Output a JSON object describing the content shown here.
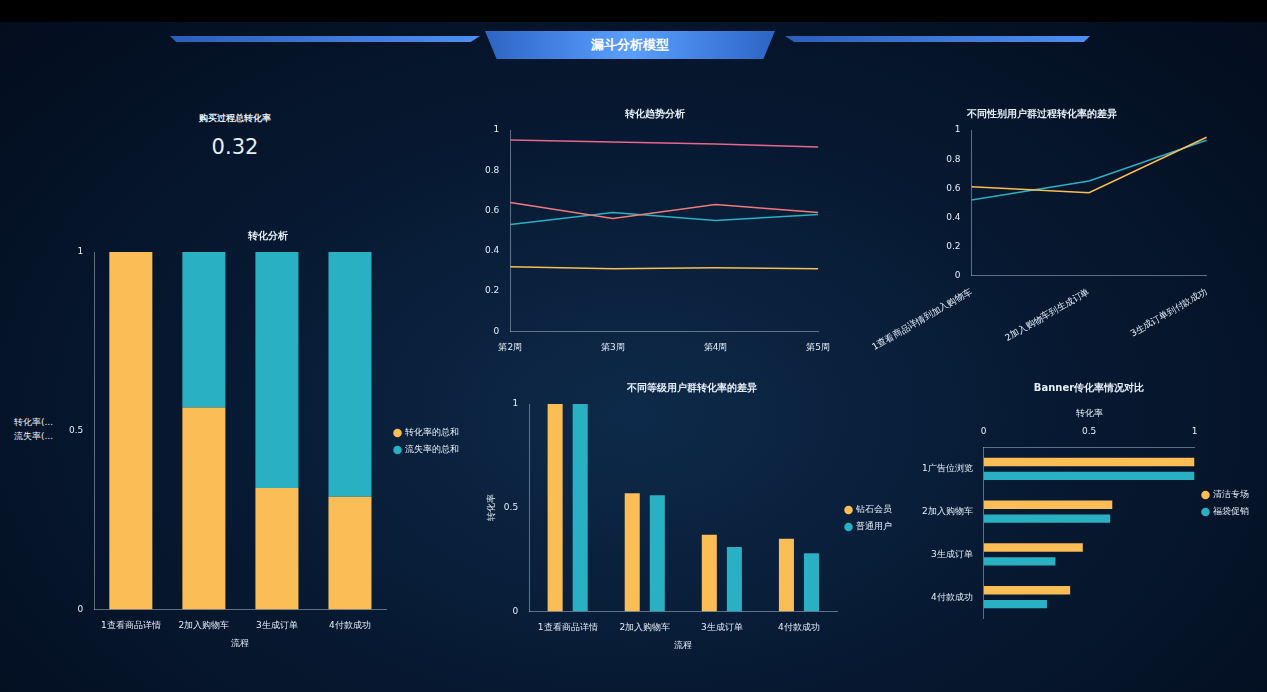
{
  "title": "漏斗分析模型",
  "kpi": {
    "label": "购买过程总转化率",
    "value": 0.32
  },
  "chart_data": [
    {
      "type": "bar",
      "title": "转化分析",
      "categories": [
        "1查看商品详情",
        "2加入购物车",
        "3生成订单",
        "4付款成功"
      ],
      "series": [
        {
          "name": "转化率的总和",
          "color": "#fbbd55",
          "values": [
            1,
            0.565,
            0.34,
            0.315
          ]
        },
        {
          "name": "流失率的总和",
          "color": "#29b0c2",
          "values": [
            0,
            0.435,
            0.66,
            0.685
          ]
        }
      ],
      "stacked": true,
      "ylim": [
        0,
        1
      ],
      "yticks": [
        0,
        0.5,
        1
      ],
      "xlabel": "流程",
      "ylabel": [
        "转化率(...",
        "流失率(..."
      ],
      "legend": "right",
      "grid": false
    },
    {
      "type": "line",
      "title": "转化趋势分析",
      "categories": [
        "第2周",
        "第3周",
        "第4周",
        "第5周"
      ],
      "series": [
        {
          "color": "#e8668a",
          "values": [
            0.95,
            0.94,
            0.93,
            0.915
          ]
        },
        {
          "color": "#f07a7a",
          "values": [
            0.64,
            0.56,
            0.63,
            0.59
          ]
        },
        {
          "color": "#29b0c2",
          "values": [
            0.53,
            0.59,
            0.55,
            0.58
          ]
        },
        {
          "color": "#fbbd55",
          "values": [
            0.32,
            0.31,
            0.315,
            0.31
          ]
        }
      ],
      "ylim": [
        0,
        1
      ],
      "yticks": [
        0,
        0.2,
        0.4,
        0.6,
        0.8,
        1
      ],
      "grid": false
    },
    {
      "type": "line",
      "title": "不同性别用户群过程转化率的差异",
      "categories": [
        "1查看商品详情到加入购物车",
        "2加入购物车到生成订单",
        "3生成订单到付款成功"
      ],
      "series": [
        {
          "color": "#fbbd55",
          "values": [
            0.61,
            0.57,
            0.95
          ]
        },
        {
          "color": "#29b0c2",
          "values": [
            0.52,
            0.65,
            0.93
          ]
        }
      ],
      "ylim": [
        0,
        1
      ],
      "yticks": [
        0,
        0.2,
        0.4,
        0.6,
        0.8,
        1
      ],
      "grid": false
    },
    {
      "type": "bar",
      "title": "不同等级用户群转化率的差异",
      "categories": [
        "1查看商品详情",
        "2加入购物车",
        "3生成订单",
        "4付款成功"
      ],
      "series": [
        {
          "name": "钻石会员",
          "color": "#fbbd55",
          "values": [
            1,
            0.57,
            0.37,
            0.35
          ]
        },
        {
          "name": "普通用户",
          "color": "#29b0c2",
          "values": [
            1,
            0.56,
            0.31,
            0.28
          ]
        }
      ],
      "ylim": [
        0,
        1
      ],
      "yticks": [
        0,
        0.5,
        1
      ],
      "xlabel": "流程",
      "ylabel": "转化率",
      "legend": "right",
      "grid": false
    },
    {
      "type": "bar",
      "title": "Banner传化率情况对比",
      "orientation": "horizontal",
      "categories": [
        "1广告位浏览",
        "2加入购物车",
        "3生成订单",
        "4付款成功"
      ],
      "series": [
        {
          "name": "清洁专场",
          "color": "#fbbd55",
          "values": [
            1,
            0.61,
            0.47,
            0.41
          ]
        },
        {
          "name": "福袋促销",
          "color": "#29b0c2",
          "values": [
            1,
            0.6,
            0.34,
            0.3
          ]
        }
      ],
      "xlim": [
        0,
        1
      ],
      "xticks": [
        0,
        0.5,
        1
      ],
      "xlabel": "转化率",
      "legend": "right",
      "grid": false
    }
  ]
}
